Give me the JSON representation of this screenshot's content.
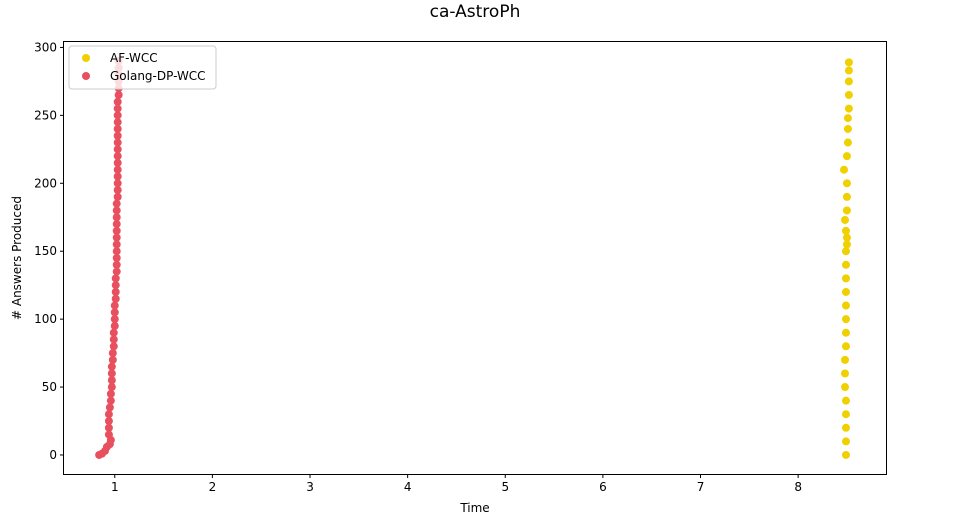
{
  "chart_data": {
    "type": "scatter",
    "title": "ca-AstroPh",
    "xlabel": "Time",
    "ylabel": "# Answers Produced",
    "xlim": [
      0.48,
      8.9
    ],
    "ylim": [
      -14,
      304
    ],
    "xticks": [
      1,
      2,
      3,
      4,
      5,
      6,
      7,
      8
    ],
    "yticks": [
      0,
      50,
      100,
      150,
      200,
      250,
      300
    ],
    "grid": false,
    "legend": "top-left",
    "series": [
      {
        "name": "AF-WCC",
        "color": "#f0d000",
        "points": [
          [
            8.49,
            0
          ],
          [
            8.49,
            10
          ],
          [
            8.49,
            20
          ],
          [
            8.49,
            30
          ],
          [
            8.49,
            40
          ],
          [
            8.48,
            50
          ],
          [
            8.48,
            60
          ],
          [
            8.48,
            70
          ],
          [
            8.49,
            80
          ],
          [
            8.49,
            90
          ],
          [
            8.49,
            100
          ],
          [
            8.49,
            110
          ],
          [
            8.49,
            120
          ],
          [
            8.49,
            130
          ],
          [
            8.49,
            140
          ],
          [
            8.49,
            150
          ],
          [
            8.5,
            155
          ],
          [
            8.5,
            160
          ],
          [
            8.49,
            165
          ],
          [
            8.48,
            173
          ],
          [
            8.5,
            180
          ],
          [
            8.5,
            190
          ],
          [
            8.5,
            200
          ],
          [
            8.47,
            210
          ],
          [
            8.5,
            220
          ],
          [
            8.51,
            230
          ],
          [
            8.51,
            240
          ],
          [
            8.51,
            248
          ],
          [
            8.52,
            255
          ],
          [
            8.52,
            265
          ],
          [
            8.52,
            275
          ],
          [
            8.52,
            283
          ],
          [
            8.52,
            289
          ]
        ]
      },
      {
        "name": "Golang-DP-WCC",
        "color": "#e8505f",
        "points": [
          [
            0.84,
            0
          ],
          [
            0.87,
            1
          ],
          [
            0.9,
            3
          ],
          [
            0.92,
            6
          ],
          [
            0.95,
            8
          ],
          [
            0.96,
            11
          ],
          [
            0.94,
            15
          ],
          [
            0.94,
            20
          ],
          [
            0.94,
            25
          ],
          [
            0.94,
            30
          ],
          [
            0.95,
            35
          ],
          [
            0.96,
            40
          ],
          [
            0.96,
            45
          ],
          [
            0.97,
            50
          ],
          [
            0.97,
            55
          ],
          [
            0.97,
            60
          ],
          [
            0.97,
            65
          ],
          [
            0.98,
            70
          ],
          [
            0.98,
            75
          ],
          [
            0.99,
            80
          ],
          [
            0.99,
            85
          ],
          [
            0.99,
            90
          ],
          [
            1.0,
            95
          ],
          [
            1.0,
            100
          ],
          [
            1.0,
            105
          ],
          [
            1.0,
            110
          ],
          [
            1.01,
            115
          ],
          [
            1.01,
            120
          ],
          [
            1.01,
            125
          ],
          [
            1.01,
            130
          ],
          [
            1.02,
            135
          ],
          [
            1.02,
            140
          ],
          [
            1.02,
            145
          ],
          [
            1.02,
            150
          ],
          [
            1.02,
            155
          ],
          [
            1.02,
            160
          ],
          [
            1.02,
            165
          ],
          [
            1.02,
            170
          ],
          [
            1.02,
            175
          ],
          [
            1.02,
            180
          ],
          [
            1.02,
            185
          ],
          [
            1.03,
            190
          ],
          [
            1.03,
            195
          ],
          [
            1.03,
            200
          ],
          [
            1.03,
            205
          ],
          [
            1.03,
            210
          ],
          [
            1.03,
            215
          ],
          [
            1.03,
            220
          ],
          [
            1.03,
            225
          ],
          [
            1.03,
            230
          ],
          [
            1.03,
            235
          ],
          [
            1.03,
            240
          ],
          [
            1.03,
            245
          ],
          [
            1.03,
            250
          ],
          [
            1.03,
            255
          ],
          [
            1.03,
            260
          ],
          [
            1.04,
            265
          ],
          [
            1.04,
            270
          ],
          [
            1.04,
            275
          ],
          [
            1.04,
            280
          ],
          [
            1.04,
            285
          ],
          [
            1.04,
            290
          ]
        ]
      }
    ]
  }
}
